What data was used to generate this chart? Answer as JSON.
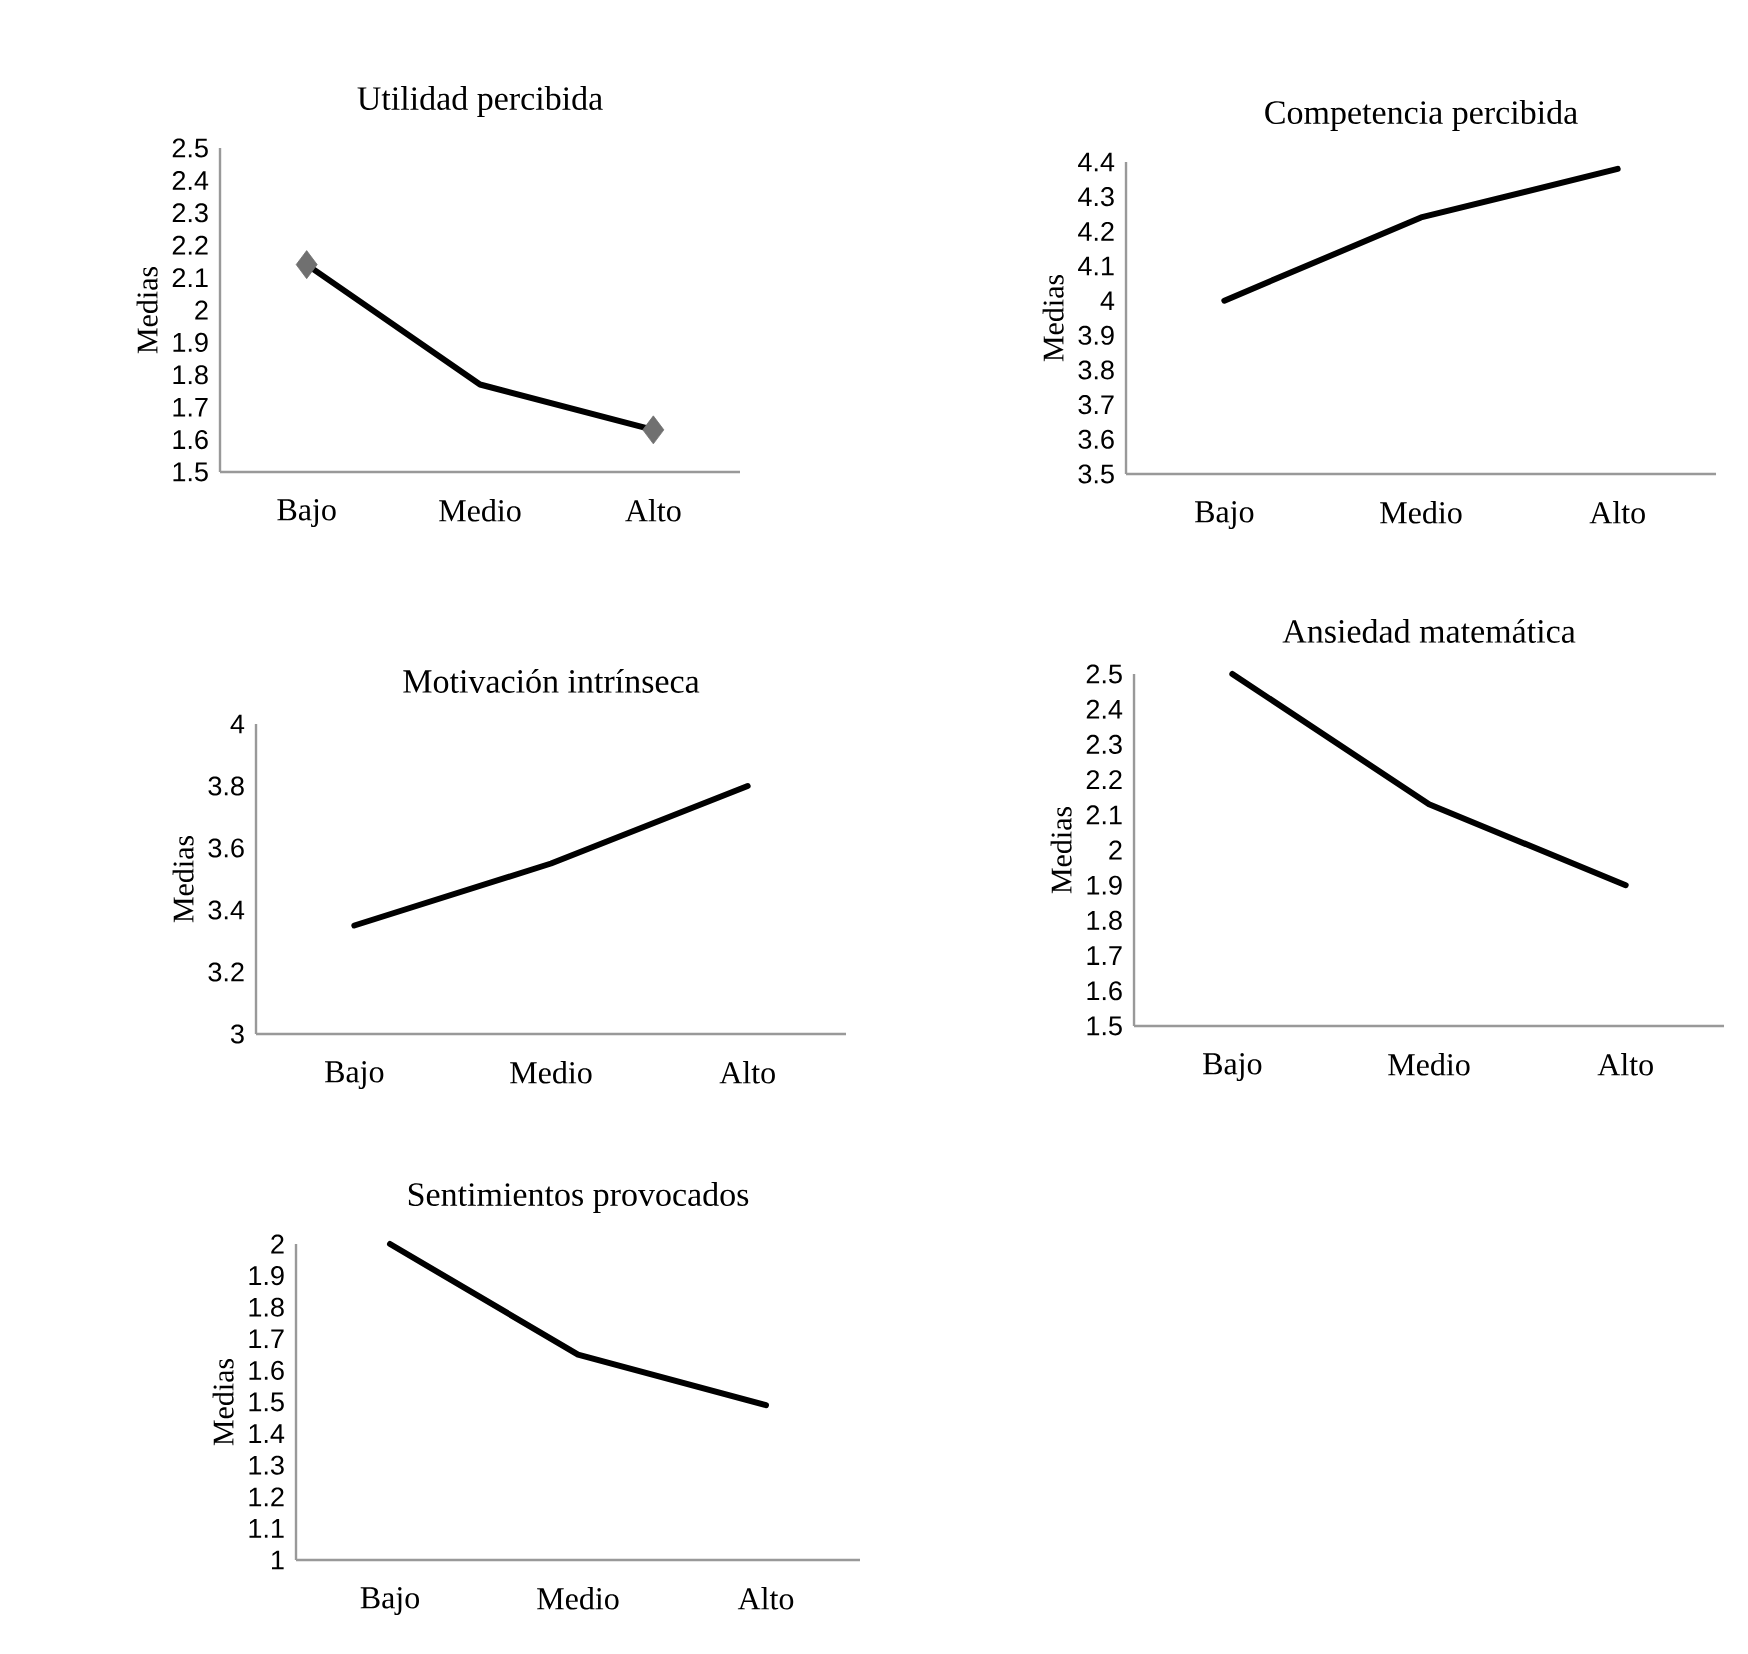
{
  "chart_data": [
    {
      "type": "line",
      "title": "Utilidad percibida",
      "ylabel": "Medias",
      "categories": [
        "Bajo",
        "Medio",
        "Alto"
      ],
      "ylim": [
        1.5,
        2.5
      ],
      "yticks": [
        1.5,
        1.6,
        1.7,
        1.8,
        1.9,
        2,
        2.1,
        2.2,
        2.3,
        2.4,
        2.5
      ],
      "series": [
        {
          "color": "#000000",
          "values": [
            2.14,
            1.77,
            1.63
          ]
        },
        {
          "type": "scatter",
          "marker": "diamond",
          "color": "#707070",
          "values": [
            2.14,
            null,
            1.63
          ]
        }
      ]
    },
    {
      "type": "line",
      "title": "Competencia percibida",
      "ylabel": "Medias",
      "categories": [
        "Bajo",
        "Medio",
        "Alto"
      ],
      "ylim": [
        3.5,
        4.4
      ],
      "yticks": [
        3.5,
        3.6,
        3.7,
        3.8,
        3.9,
        4,
        4.1,
        4.2,
        4.3,
        4.4
      ],
      "series": [
        {
          "color": "#000000",
          "values": [
            4.0,
            4.24,
            4.38
          ]
        }
      ]
    },
    {
      "type": "line",
      "title": "Motivación intrínseca",
      "ylabel": "Medias",
      "categories": [
        "Bajo",
        "Medio",
        "Alto"
      ],
      "ylim": [
        3,
        4
      ],
      "yticks": [
        3,
        3.2,
        3.4,
        3.6,
        3.8,
        4
      ],
      "series": [
        {
          "color": "#000000",
          "values": [
            3.35,
            3.55,
            3.8
          ]
        }
      ]
    },
    {
      "type": "line",
      "title": "Ansiedad matemática",
      "ylabel": "Medias",
      "categories": [
        "Bajo",
        "Medio",
        "Alto"
      ],
      "ylim": [
        1.5,
        2.5
      ],
      "yticks": [
        1.5,
        1.6,
        1.7,
        1.8,
        1.9,
        2,
        2.1,
        2.2,
        2.3,
        2.4,
        2.5
      ],
      "series": [
        {
          "color": "#000000",
          "values": [
            2.5,
            2.13,
            1.9
          ]
        }
      ]
    },
    {
      "type": "line",
      "title": "Sentimientos provocados",
      "ylabel": "Medias",
      "categories": [
        "Bajo",
        "Medio",
        "Alto"
      ],
      "ylim": [
        1,
        2
      ],
      "yticks": [
        1,
        1.1,
        1.2,
        1.3,
        1.4,
        1.5,
        1.6,
        1.7,
        1.8,
        1.9,
        2
      ],
      "series": [
        {
          "color": "#000000",
          "values": [
            2.0,
            1.65,
            1.49
          ]
        }
      ]
    }
  ]
}
